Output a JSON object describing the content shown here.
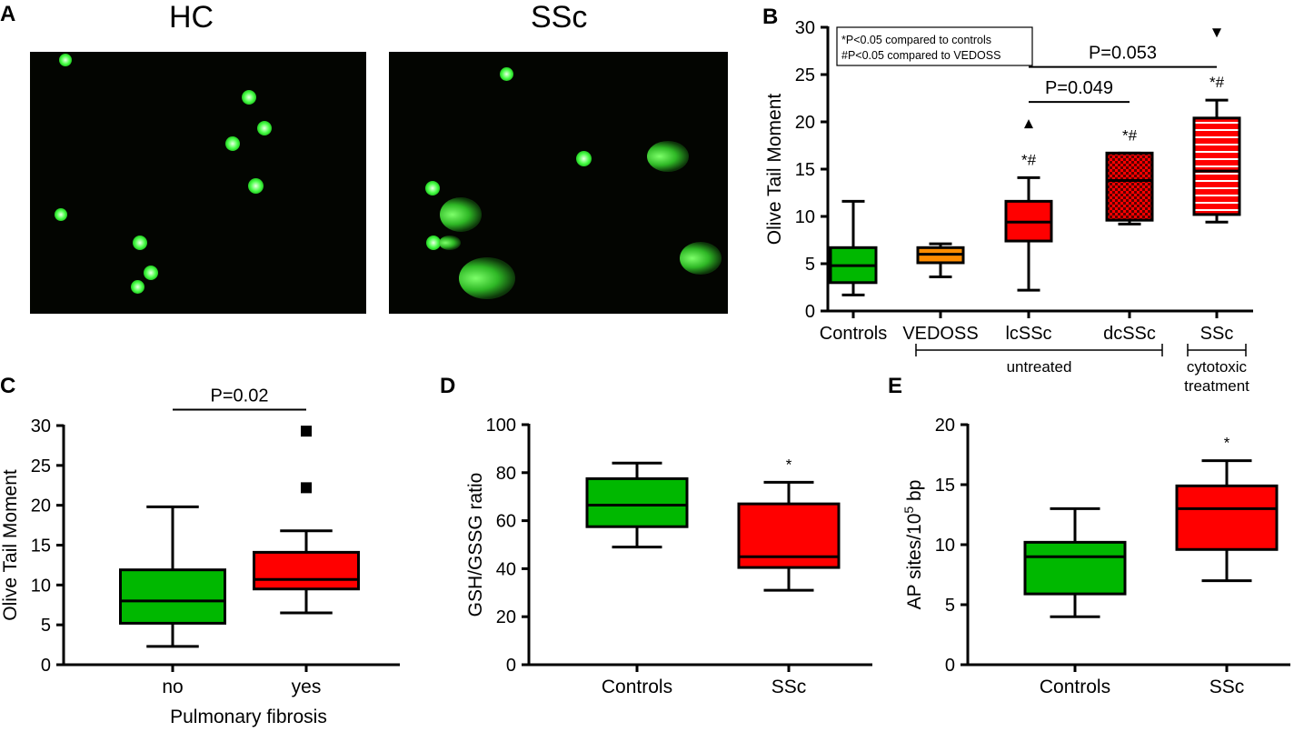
{
  "panel_a": {
    "letter": "A",
    "hc_title": "HC",
    "ssc_title": "SSc"
  },
  "chart_data": [
    {
      "panel": "B",
      "type": "box",
      "ylabel": "Olive Tail Moment",
      "ylim": [
        0,
        30
      ],
      "yticks": [
        0,
        5,
        10,
        15,
        20,
        25,
        30
      ],
      "legend_lines": [
        "*P<0.05 compared to controls",
        "#P<0.05 compared to VEDOSS"
      ],
      "categories": [
        "Controls",
        "VEDOSS",
        "lcSSc",
        "dcSSc",
        "SSc"
      ],
      "boxes": [
        {
          "name": "Controls",
          "min": 1.7,
          "q1": 3.0,
          "median": 4.8,
          "q3": 6.7,
          "max": 11.6,
          "color": "#00b800",
          "pattern": "solid",
          "sig": ""
        },
        {
          "name": "VEDOSS",
          "min": 3.6,
          "q1": 5.1,
          "median": 6.0,
          "q3": 6.7,
          "max": 7.1,
          "color": "#ff8c00",
          "pattern": "solid",
          "sig": ""
        },
        {
          "name": "lcSSc",
          "min": 2.2,
          "q1": 7.4,
          "median": 9.4,
          "q3": 11.6,
          "max": 14.1,
          "color": "#ff0000",
          "pattern": "solid",
          "sig": "*#",
          "outliers": [
            {
              "y": 19.8,
              "marker": "triangle-up"
            }
          ]
        },
        {
          "name": "dcSSc",
          "min": 9.2,
          "q1": 9.6,
          "median": 13.8,
          "q3": 16.7,
          "max": 16.7,
          "color": "#ff0000",
          "pattern": "checker",
          "sig": "*#"
        },
        {
          "name": "SSc",
          "min": 9.4,
          "q1": 10.2,
          "median": 14.8,
          "q3": 20.4,
          "max": 22.3,
          "color": "#ff0000",
          "pattern": "stripes",
          "sig": "*#",
          "outliers": [
            {
              "y": 29.4,
              "marker": "triangle-down"
            }
          ]
        }
      ],
      "brackets": [
        {
          "from": "lcSSc",
          "to": "dcSSc",
          "y": 22.1,
          "label": "P=0.049"
        },
        {
          "from": "lcSSc",
          "to": "SSc",
          "y": 25.8,
          "label": "P=0.053"
        }
      ],
      "groups": [
        {
          "label": "untreated",
          "from": "VEDOSS",
          "to": "dcSSc"
        },
        {
          "label_lines": [
            "cytotoxic",
            "treatment"
          ],
          "from": "SSc",
          "to": "SSc"
        }
      ]
    },
    {
      "panel": "C",
      "type": "box",
      "ylabel": "Olive Tail Moment",
      "xlabel": "Pulmonary fibrosis",
      "ylim": [
        0,
        30
      ],
      "yticks": [
        0,
        5,
        10,
        15,
        20,
        25,
        30
      ],
      "categories": [
        "no",
        "yes"
      ],
      "boxes": [
        {
          "name": "no",
          "min": 2.3,
          "q1": 5.2,
          "median": 8.0,
          "q3": 11.9,
          "max": 19.8,
          "color": "#00b800",
          "pattern": "solid",
          "sig": ""
        },
        {
          "name": "yes",
          "min": 6.5,
          "q1": 9.5,
          "median": 10.7,
          "q3": 14.1,
          "max": 16.8,
          "color": "#ff0000",
          "pattern": "solid",
          "sig": "",
          "outliers": [
            {
              "y": 22.2,
              "marker": "square"
            },
            {
              "y": 29.3,
              "marker": "square"
            }
          ]
        }
      ],
      "brackets": [
        {
          "from": "no",
          "to": "yes",
          "y": 32,
          "label": "P=0.02"
        }
      ]
    },
    {
      "panel": "D",
      "type": "box",
      "ylabel": "GSH/GSSG ratio",
      "ylim": [
        0,
        100
      ],
      "yticks": [
        0,
        20,
        40,
        60,
        80,
        100
      ],
      "categories": [
        "Controls",
        "SSc"
      ],
      "boxes": [
        {
          "name": "Controls",
          "min": 49,
          "q1": 57.5,
          "median": 66.5,
          "q3": 77.5,
          "max": 84,
          "color": "#00b800",
          "pattern": "solid",
          "sig": ""
        },
        {
          "name": "SSc",
          "min": 31,
          "q1": 40.5,
          "median": 45,
          "q3": 67,
          "max": 76,
          "color": "#ff0000",
          "pattern": "solid",
          "sig": "*"
        }
      ]
    },
    {
      "panel": "E",
      "type": "box",
      "ylabel": "AP sites/10",
      "ylabel_sup": "5",
      "ylabel_end": " bp",
      "ylim": [
        0,
        20
      ],
      "yticks": [
        0,
        5,
        10,
        15,
        20
      ],
      "categories": [
        "Controls",
        "SSc"
      ],
      "boxes": [
        {
          "name": "Controls",
          "min": 4,
          "q1": 5.9,
          "median": 9,
          "q3": 10.2,
          "max": 13,
          "color": "#00b800",
          "pattern": "solid",
          "sig": ""
        },
        {
          "name": "SSc",
          "min": 7,
          "q1": 9.6,
          "median": 13,
          "q3": 14.9,
          "max": 17,
          "color": "#ff0000",
          "pattern": "solid",
          "sig": "*"
        }
      ]
    }
  ]
}
